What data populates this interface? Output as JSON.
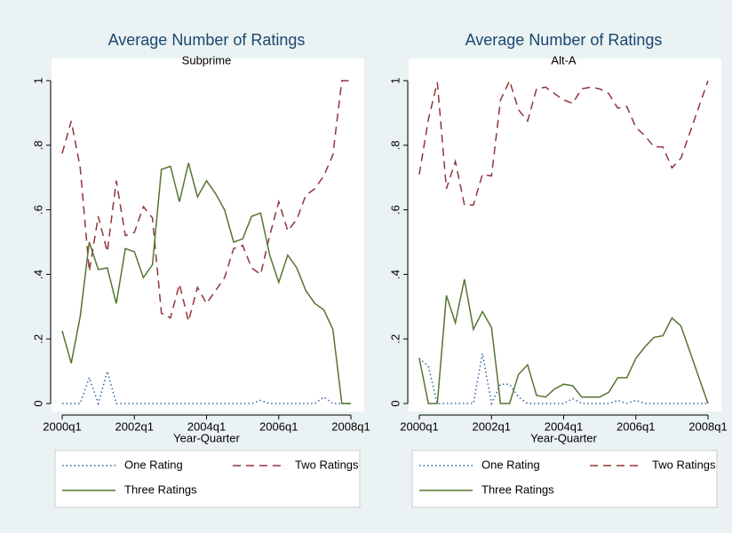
{
  "chart_data": [
    {
      "type": "line",
      "title": "Average Number of Ratings",
      "subtitle": "Subprime",
      "x_label": "Year-Quarter",
      "x": [
        2000,
        2000.25,
        2000.5,
        2000.75,
        2001,
        2001.25,
        2001.5,
        2001.75,
        2002,
        2002.25,
        2002.5,
        2002.75,
        2003,
        2003.25,
        2003.5,
        2003.75,
        2004,
        2004.25,
        2004.5,
        2004.75,
        2005,
        2005.25,
        2005.5,
        2005.75,
        2006,
        2006.25,
        2006.5,
        2006.75,
        2007,
        2007.25,
        2007.5,
        2007.75,
        2008
      ],
      "xlim": [
        2000,
        2008
      ],
      "xticks": [
        {
          "value": 2000,
          "label": "2000q1"
        },
        {
          "value": 2002,
          "label": "2002q1"
        },
        {
          "value": 2004,
          "label": "2004q1"
        },
        {
          "value": 2006,
          "label": "2006q1"
        },
        {
          "value": 2008,
          "label": "2008q1"
        }
      ],
      "ylim": [
        0,
        1
      ],
      "yticks": [
        0,
        {
          "value": 0.2,
          "label": ".2"
        },
        {
          "value": 0.4,
          "label": ".4"
        },
        {
          "value": 0.6,
          "label": ".6"
        },
        {
          "value": 0.8,
          "label": ".8"
        },
        1
      ],
      "series": [
        {
          "name": "One Rating",
          "color": "#2a62a4",
          "dash": "dotted",
          "values": [
            0,
            0,
            0,
            0.08,
            0,
            0.1,
            0,
            0,
            0,
            0,
            0,
            0,
            0,
            0,
            0,
            0,
            0,
            0,
            0,
            0,
            0,
            0,
            0.01,
            0,
            0,
            0,
            0,
            0,
            0,
            0.02,
            0,
            0,
            0
          ]
        },
        {
          "name": "Two Ratings",
          "color": "#90353b",
          "dash": "dashed",
          "values": [
            0.775,
            0.875,
            0.73,
            0.41,
            0.58,
            0.47,
            0.69,
            0.52,
            0.53,
            0.61,
            0.575,
            0.28,
            0.265,
            0.37,
            0.255,
            0.36,
            0.31,
            0.35,
            0.39,
            0.48,
            0.49,
            0.42,
            0.4,
            0.52,
            0.625,
            0.535,
            0.57,
            0.645,
            0.665,
            0.705,
            0.77,
            1,
            1
          ]
        },
        {
          "name": "Three Ratings",
          "color": "#55752f",
          "dash": "solid",
          "values": [
            0.225,
            0.125,
            0.27,
            0.5,
            0.415,
            0.42,
            0.31,
            0.48,
            0.47,
            0.39,
            0.43,
            0.725,
            0.735,
            0.625,
            0.745,
            0.64,
            0.69,
            0.65,
            0.6,
            0.5,
            0.51,
            0.58,
            0.59,
            0.46,
            0.375,
            0.46,
            0.42,
            0.35,
            0.31,
            0.29,
            0.23,
            0,
            0
          ]
        }
      ]
    },
    {
      "type": "line",
      "title": "Average Number of Ratings",
      "subtitle": "Alt-A",
      "x_label": "Year-Quarter",
      "x": [
        2000,
        2000.25,
        2000.5,
        2000.75,
        2001,
        2001.25,
        2001.5,
        2001.75,
        2002,
        2002.25,
        2002.5,
        2002.75,
        2003,
        2003.25,
        2003.5,
        2003.75,
        2004,
        2004.25,
        2004.5,
        2004.75,
        2005,
        2005.25,
        2005.5,
        2005.75,
        2006,
        2006.25,
        2006.5,
        2006.75,
        2007,
        2007.25,
        2007.5,
        2007.75,
        2008
      ],
      "xlim": [
        2000,
        2008
      ],
      "xticks": [
        {
          "value": 2000,
          "label": "2000q1"
        },
        {
          "value": 2002,
          "label": "2002q1"
        },
        {
          "value": 2004,
          "label": "2004q1"
        },
        {
          "value": 2006,
          "label": "2006q1"
        },
        {
          "value": 2008,
          "label": "2008q1"
        }
      ],
      "ylim": [
        0,
        1
      ],
      "yticks": [
        0,
        {
          "value": 0.2,
          "label": ".2"
        },
        {
          "value": 0.4,
          "label": ".4"
        },
        {
          "value": 0.6,
          "label": ".6"
        },
        {
          "value": 0.8,
          "label": ".8"
        },
        1
      ],
      "series": [
        {
          "name": "One Rating",
          "color": "#2a62a4",
          "dash": "dotted",
          "values": [
            0.14,
            0.115,
            0,
            0,
            0,
            0,
            0,
            0.155,
            0,
            0.06,
            0.06,
            0.02,
            0,
            0,
            0,
            0,
            0,
            0.015,
            0,
            0,
            0,
            0,
            0.01,
            0,
            0.01,
            0,
            0,
            0,
            0,
            0,
            0,
            0,
            0
          ]
        },
        {
          "name": "Two Ratings",
          "color": "#90353b",
          "dash": "dashed",
          "values": [
            0.71,
            0.88,
            0.995,
            0.665,
            0.75,
            0.615,
            0.615,
            0.71,
            0.705,
            0.94,
            1,
            0.91,
            0.875,
            0.975,
            0.98,
            0.96,
            0.94,
            0.93,
            0.975,
            0.98,
            0.975,
            0.96,
            0.915,
            0.92,
            0.855,
            0.83,
            0.795,
            0.795,
            0.73,
            0.76,
            0.84,
            0.92,
            1
          ]
        },
        {
          "name": "Three Ratings",
          "color": "#55752f",
          "dash": "solid",
          "values": [
            0.14,
            0,
            0,
            0.335,
            0.25,
            0.385,
            0.23,
            0.285,
            0.235,
            0,
            0,
            0.09,
            0.12,
            0.025,
            0.02,
            0.045,
            0.06,
            0.055,
            0.02,
            0.02,
            0.02,
            0.035,
            0.08,
            0.08,
            0.14,
            0.175,
            0.205,
            0.21,
            0.265,
            0.24,
            0.16,
            0.08,
            0
          ]
        }
      ]
    }
  ]
}
